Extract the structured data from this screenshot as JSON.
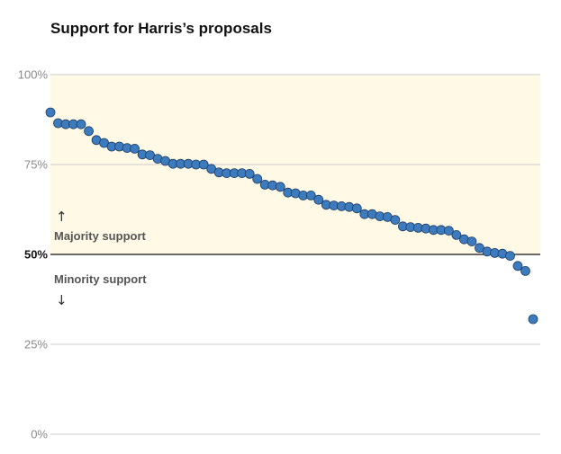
{
  "title": "Support for Harris’s proposals",
  "chart_data": {
    "type": "scatter",
    "title": "Support for Harris’s proposals",
    "xlabel": "",
    "ylabel": "",
    "ylim": [
      0,
      100
    ],
    "yticks": [
      {
        "value": 100,
        "label": "100%"
      },
      {
        "value": 75,
        "label": "75%"
      },
      {
        "value": 50,
        "label": "50%"
      },
      {
        "value": 25,
        "label": "25%"
      },
      {
        "value": 0,
        "label": "0%"
      }
    ],
    "threshold": 50,
    "shaded_region": [
      50,
      100
    ],
    "annotations": {
      "majority": "Majority support",
      "minority": "Minority support"
    },
    "colors": {
      "point": "#3d7bbf",
      "point_stroke": "#1f3f66",
      "majority_fill": "#fff9e6",
      "grid": "#cccccc",
      "threshold": "#111111"
    },
    "values": [
      89.5,
      86.5,
      86.2,
      86.2,
      86.2,
      84.3,
      81.8,
      81.0,
      80.0,
      80.0,
      79.6,
      79.4,
      77.8,
      77.6,
      76.6,
      76.0,
      75.2,
      75.2,
      75.2,
      75.0,
      75.0,
      73.8,
      72.8,
      72.6,
      72.6,
      72.6,
      72.4,
      71.0,
      69.4,
      69.2,
      68.8,
      67.2,
      67.0,
      66.4,
      66.4,
      65.2,
      63.8,
      63.6,
      63.4,
      63.2,
      62.8,
      61.2,
      61.2,
      60.6,
      60.4,
      59.6,
      57.8,
      57.6,
      57.4,
      57.2,
      56.8,
      56.8,
      56.6,
      55.4,
      54.2,
      53.6,
      51.8,
      50.8,
      50.4,
      50.2,
      49.6,
      46.8,
      45.4,
      32.0
    ]
  }
}
